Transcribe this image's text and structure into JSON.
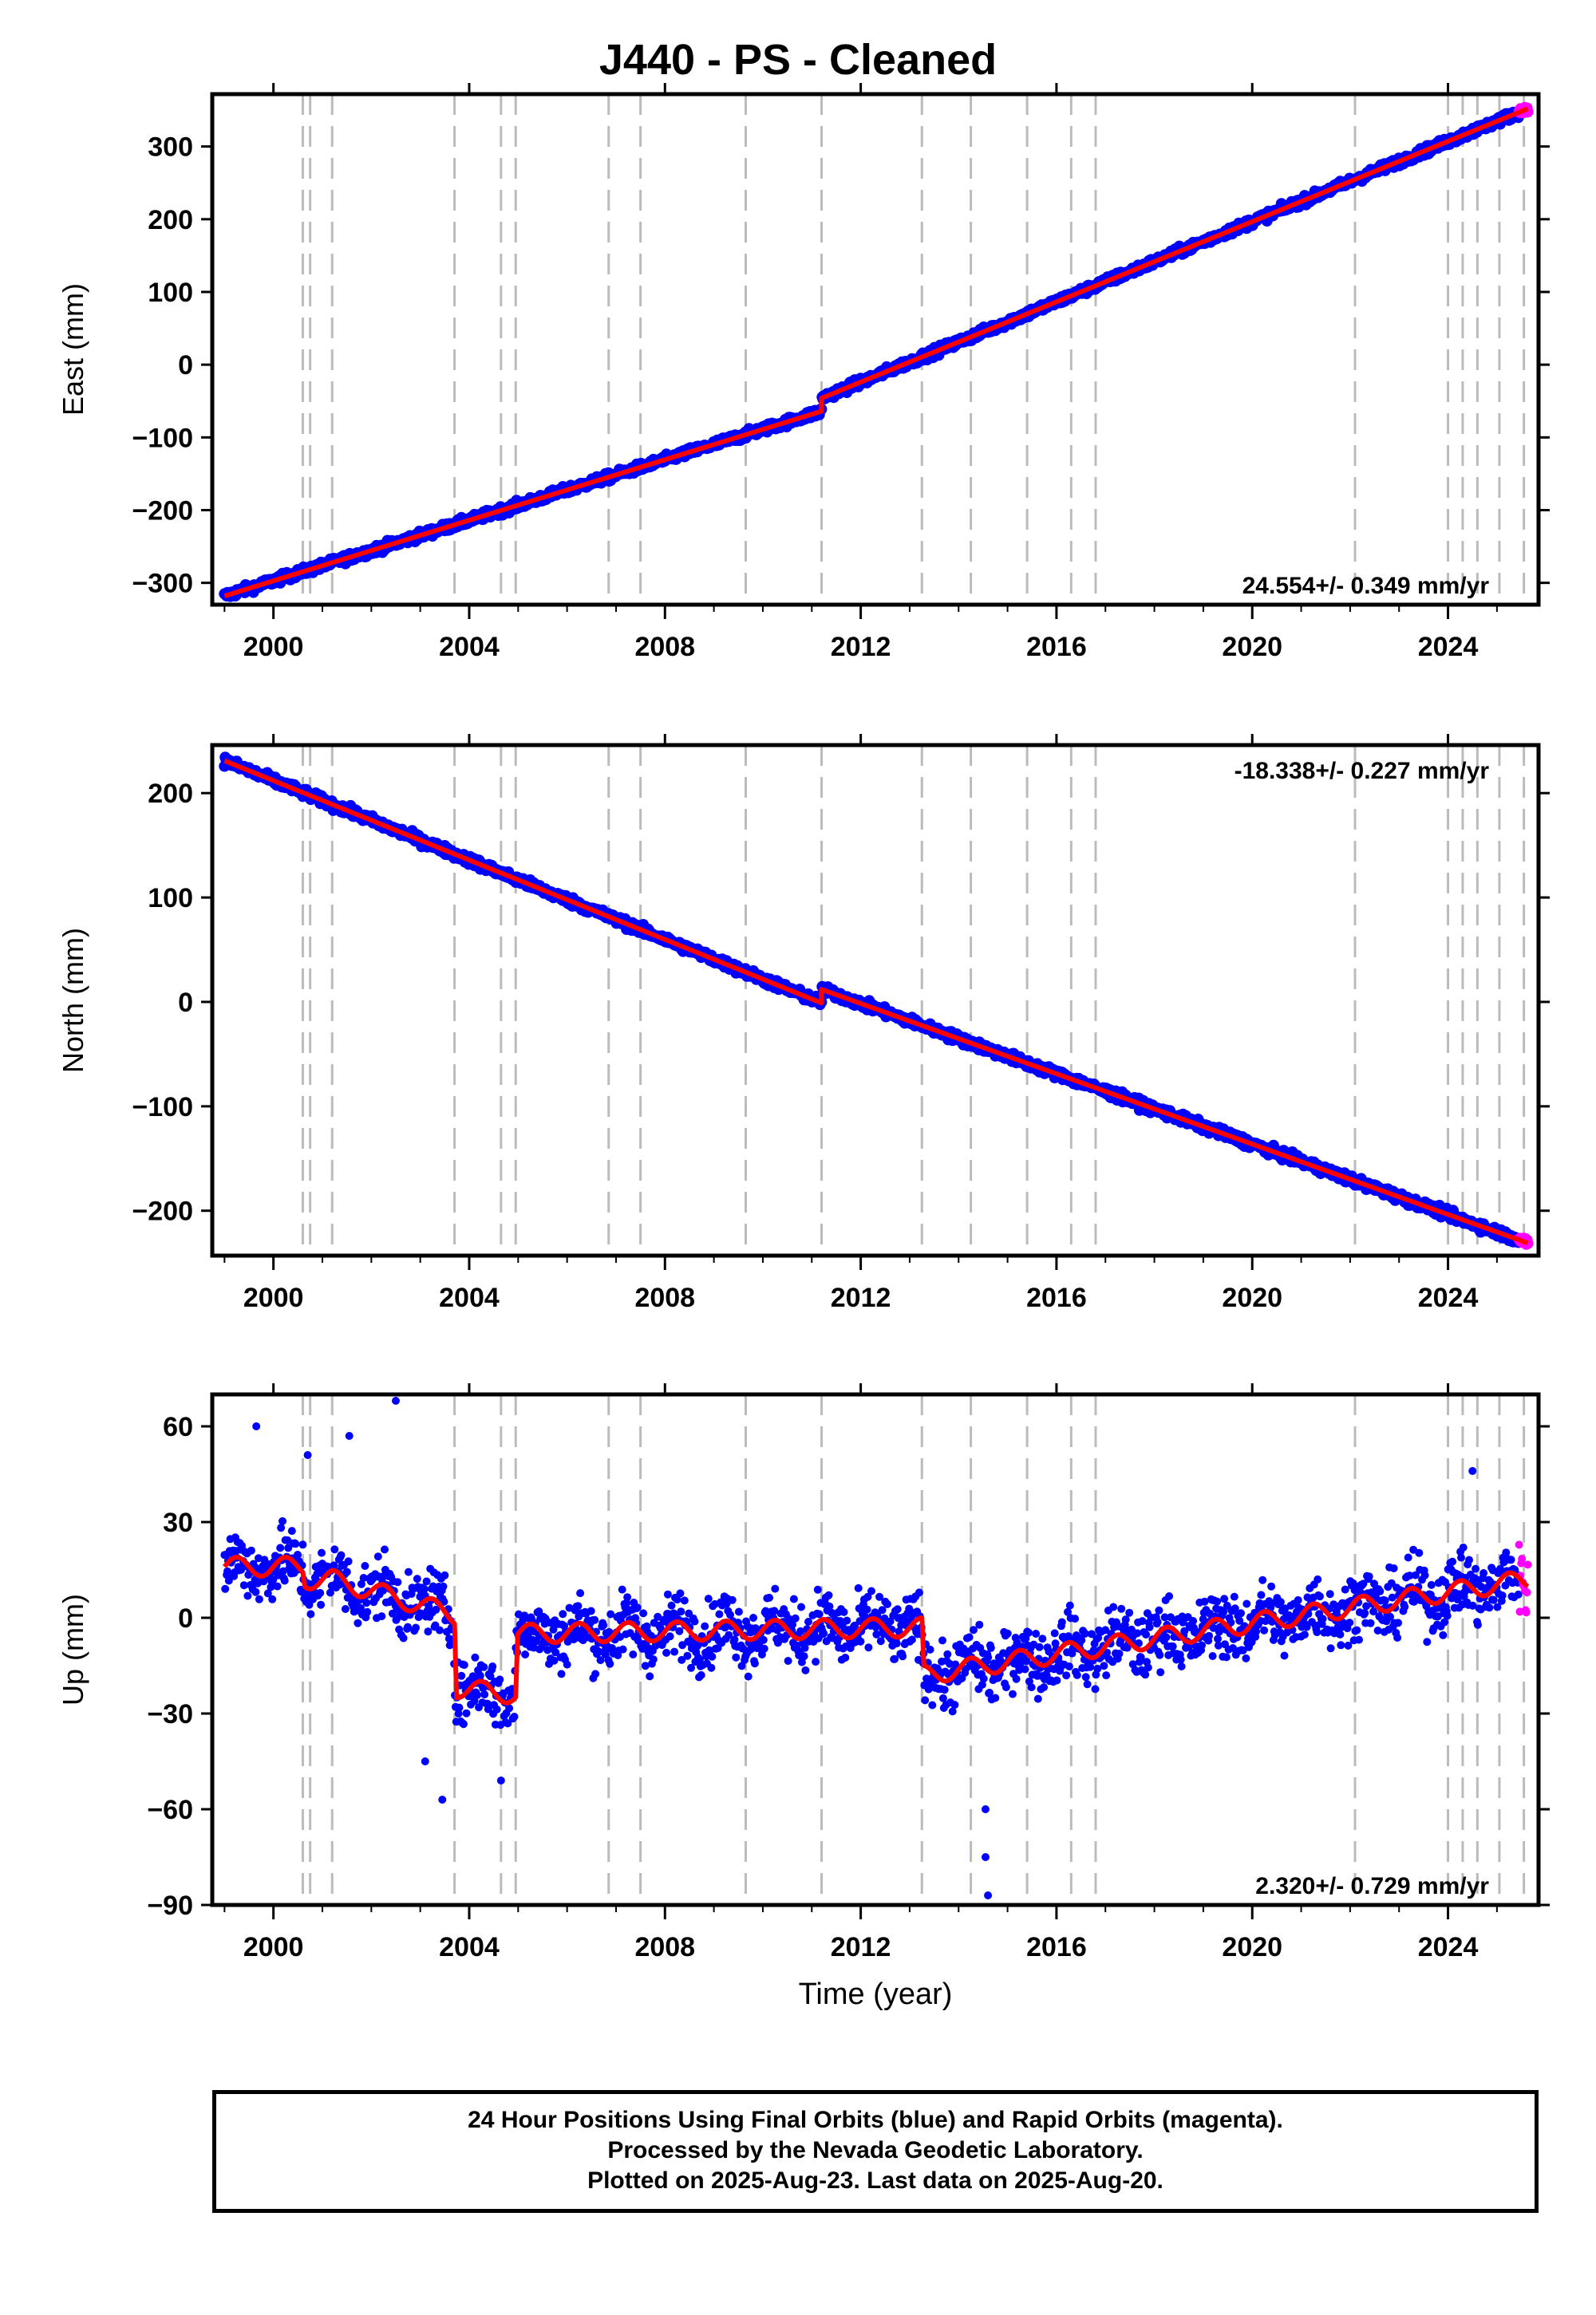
{
  "title": "J440  - PS - Cleaned",
  "footer": {
    "line1": "24 Hour Positions Using Final Orbits (blue) and Rapid Orbits (magenta).",
    "line2": "Processed by the Nevada Geodetic Laboratory.",
    "line3": "Plotted on 2025-Aug-23. Last data on 2025-Aug-20."
  },
  "colors": {
    "final": "#0000ff",
    "rapid": "#ff00ff",
    "model": "#ff0000",
    "steps": "#bbbbbb"
  },
  "x_axis": {
    "label": "Time (year)",
    "range": [
      1998.75,
      2025.85
    ],
    "ticks": [
      2000,
      2004,
      2008,
      2012,
      2016,
      2020,
      2024
    ]
  },
  "step_epochs": [
    2000.6,
    2000.75,
    2001.2,
    2003.7,
    2004.65,
    2004.95,
    2006.85,
    2007.5,
    2009.65,
    2011.2,
    2013.25,
    2014.25,
    2015.4,
    2016.3,
    2016.8,
    2022.1,
    2024.0,
    2024.3,
    2024.6,
    2025.05,
    2025.55
  ],
  "chart_data": [
    {
      "type": "scatter",
      "name": "east",
      "ylabel": "East (mm)",
      "ylim": [
        -330,
        372
      ],
      "yticks": [
        -300,
        -200,
        -100,
        0,
        100,
        200,
        300
      ],
      "rate_label": "24.554+/- 0.349 mm/yr",
      "rate_position": "bottom-right",
      "x_start": 1999.0,
      "x_end": 2025.63,
      "rapid_start": 2025.45,
      "noise_amplitude": 4,
      "model": [
        [
          1999.0,
          -318
        ],
        [
          2011.2,
          -64
        ],
        [
          2011.2,
          -46
        ],
        [
          2025.63,
          352
        ]
      ]
    },
    {
      "type": "scatter",
      "name": "north",
      "ylabel": "North (mm)",
      "ylim": [
        -243,
        246
      ],
      "yticks": [
        -200,
        -100,
        0,
        100,
        200
      ],
      "rate_label": "-18.338+/- 0.227 mm/yr",
      "rate_position": "top-right",
      "x_start": 1999.0,
      "x_end": 2025.63,
      "rapid_start": 2025.45,
      "noise_amplitude": 3,
      "model": [
        [
          1999.0,
          231
        ],
        [
          2011.2,
          -1
        ],
        [
          2011.2,
          12
        ],
        [
          2025.63,
          -231
        ]
      ]
    },
    {
      "type": "scatter",
      "name": "up",
      "xlabel": "Time (year)",
      "ylabel": "Up (mm)",
      "ylim": [
        -90,
        70
      ],
      "yticks": [
        -90,
        -60,
        -30,
        0,
        30,
        60
      ],
      "rate_label": "2.320+/- 0.729 mm/yr",
      "rate_position": "bottom-right",
      "x_start": 1999.0,
      "x_end": 2025.63,
      "rapid_start": 2025.45,
      "noise_amplitude": 7,
      "segments": [
        [
          1999.0,
          2000.6,
          16,
          16
        ],
        [
          2000.6,
          2001.2,
          12,
          12
        ],
        [
          2001.2,
          2003.7,
          12,
          1
        ],
        [
          2003.7,
          2004.95,
          -22,
          -24
        ],
        [
          2004.95,
          2013.25,
          -5,
          -3
        ],
        [
          2013.25,
          2025.63,
          -18,
          12
        ]
      ],
      "outliers": [
        [
          2002.5,
          68
        ],
        [
          1999.65,
          60
        ],
        [
          2000.7,
          51
        ],
        [
          2001.55,
          57
        ],
        [
          2024.5,
          46
        ],
        [
          2003.45,
          -57
        ],
        [
          2004.65,
          -51
        ],
        [
          2014.55,
          -60
        ],
        [
          2014.55,
          -75
        ],
        [
          2014.6,
          -87
        ],
        [
          2003.1,
          -45
        ]
      ]
    }
  ]
}
